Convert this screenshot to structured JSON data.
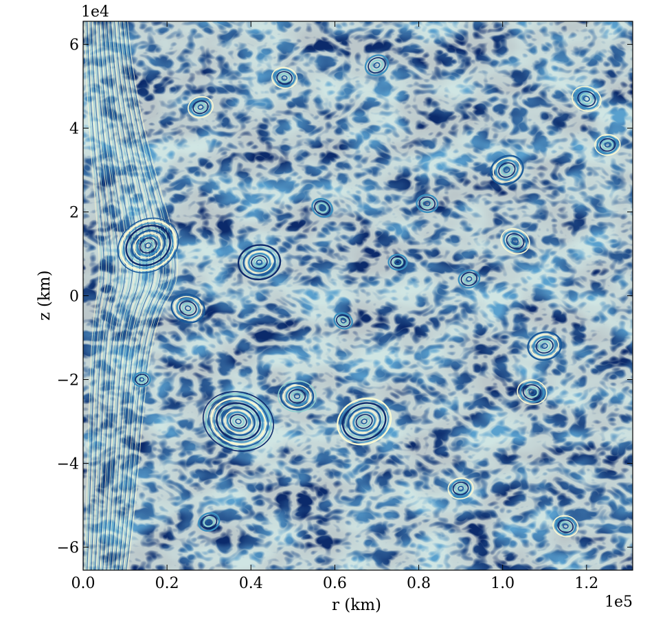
{
  "chart_data": {
    "type": "heatmap",
    "description_kind": "streamline-texture image",
    "title": "",
    "xlabel": "r  (km)",
    "ylabel": "z  (km)",
    "x_multiplier_label": "1e5",
    "y_multiplier_label": "1e4",
    "xlim": [
      0.0,
      1.31
    ],
    "ylim": [
      -6.55,
      6.55
    ],
    "x_ticks": [
      0.0,
      0.2,
      0.4,
      0.6,
      0.8,
      1.0,
      1.2
    ],
    "x_tick_labels": [
      "0.0",
      "0.2",
      "0.4",
      "0.6",
      "0.8",
      "1.0",
      "1.2"
    ],
    "y_ticks": [
      6,
      4,
      2,
      0,
      -2,
      -4,
      -6
    ],
    "y_tick_labels": [
      "6",
      "4",
      "2",
      "0",
      "−2",
      "−4",
      "−6"
    ],
    "grid": false,
    "legend": "none",
    "colormap": [
      "#0b2a6b",
      "#1a5a9a",
      "#3b8fbf",
      "#8fd0cf",
      "#fafad2"
    ],
    "vortices": [
      {
        "r": 0.155,
        "z": 1.2,
        "size": 0.075
      },
      {
        "r": 0.42,
        "z": 0.8,
        "size": 0.05
      },
      {
        "r": 0.37,
        "z": -3.0,
        "size": 0.085
      },
      {
        "r": 0.67,
        "z": -3.0,
        "size": 0.065
      },
      {
        "r": 0.51,
        "z": -2.4,
        "size": 0.045
      },
      {
        "r": 1.03,
        "z": 1.3,
        "size": 0.035
      },
      {
        "r": 1.1,
        "z": -1.2,
        "size": 0.04
      },
      {
        "r": 1.07,
        "z": -2.3,
        "size": 0.035
      },
      {
        "r": 1.01,
        "z": 3.0,
        "size": 0.04
      },
      {
        "r": 0.14,
        "z": -2.0,
        "size": 0.02
      },
      {
        "r": 1.2,
        "z": 4.7,
        "size": 0.035
      },
      {
        "r": 0.28,
        "z": 4.5,
        "size": 0.03
      },
      {
        "r": 0.82,
        "z": 2.2,
        "size": 0.025
      },
      {
        "r": 0.57,
        "z": 2.1,
        "size": 0.025
      },
      {
        "r": 0.9,
        "z": -4.6,
        "size": 0.03
      },
      {
        "r": 1.15,
        "z": -5.5,
        "size": 0.03
      },
      {
        "r": 0.3,
        "z": -5.4,
        "size": 0.025
      },
      {
        "r": 0.75,
        "z": 0.8,
        "size": 0.022
      },
      {
        "r": 0.62,
        "z": -0.6,
        "size": 0.022
      },
      {
        "r": 0.92,
        "z": 0.4,
        "size": 0.025
      },
      {
        "r": 0.48,
        "z": 5.2,
        "size": 0.03
      },
      {
        "r": 0.7,
        "z": 5.5,
        "size": 0.028
      },
      {
        "r": 1.25,
        "z": 3.6,
        "size": 0.03
      },
      {
        "r": 0.25,
        "z": -0.3,
        "size": 0.04
      }
    ]
  }
}
